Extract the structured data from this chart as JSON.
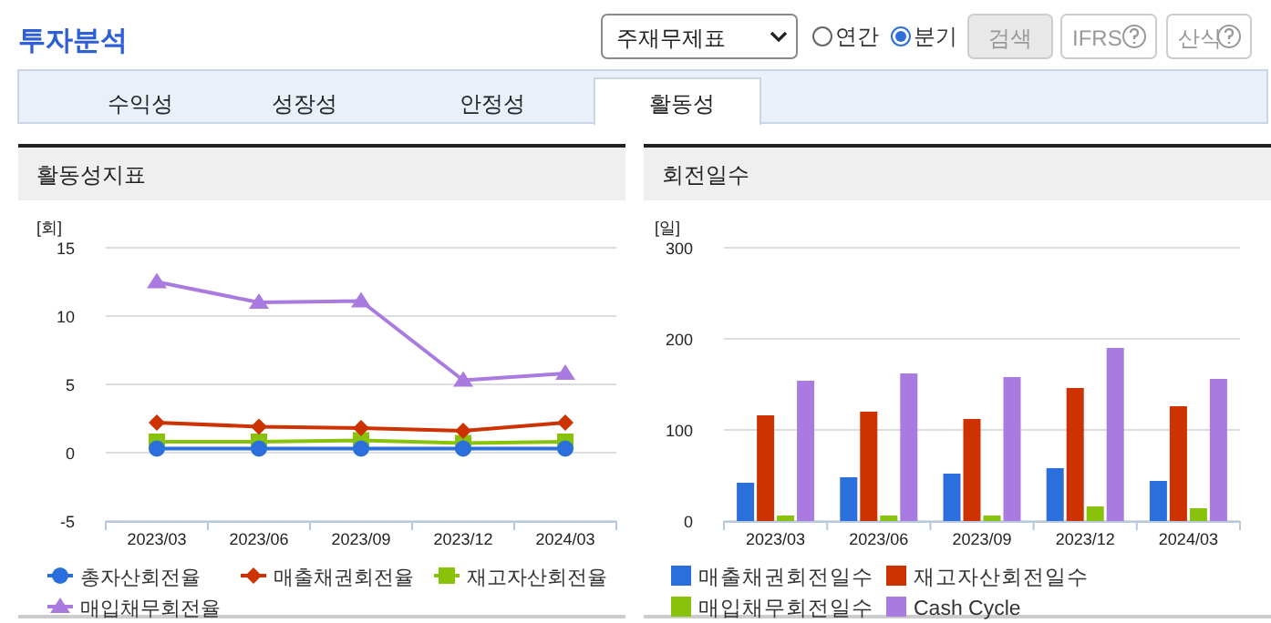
{
  "chart_data": [
    {
      "type": "other",
      "title": "투자분석",
      "annotations": [
        "주재무제표",
        "연간",
        "분기",
        "검색",
        "IFRS",
        "산식",
        "수익성",
        "성장성",
        "안정성",
        "활동성"
      ]
    },
    {
      "type": "line",
      "title": "활동성지표",
      "ylabel": "[회]",
      "categories": [
        "2023/03",
        "2023/06",
        "2023/09",
        "2023/12",
        "2024/03"
      ],
      "ylim": [
        -5,
        15
      ],
      "yticks": [
        -5,
        0,
        5,
        10,
        15
      ],
      "grid": "y",
      "legend": "bottom",
      "series": [
        {
          "name": "총자산회전율",
          "color": "#2a6fdb",
          "marker": "circle",
          "values": [
            0.3,
            0.3,
            0.3,
            0.3,
            0.3
          ]
        },
        {
          "name": "매출채권회전율",
          "color": "#cc3300",
          "marker": "diamond",
          "values": [
            2.2,
            1.9,
            1.8,
            1.6,
            2.2
          ]
        },
        {
          "name": "재고자산회전율",
          "color": "#88c20a",
          "marker": "square",
          "values": [
            0.8,
            0.8,
            0.9,
            0.7,
            0.8
          ]
        },
        {
          "name": "매입채무회전율",
          "color": "#a97be0",
          "marker": "triangle",
          "values": [
            12.5,
            11.0,
            11.1,
            5.3,
            5.8
          ]
        }
      ]
    },
    {
      "type": "bar",
      "title": "회전일수",
      "ylabel": "[일]",
      "categories": [
        "2023/03",
        "2023/06",
        "2023/09",
        "2023/12",
        "2024/03"
      ],
      "ylim": [
        0,
        300
      ],
      "yticks": [
        0,
        100,
        200,
        300
      ],
      "grid": "y",
      "legend": "bottom",
      "series": [
        {
          "name": "매출채권회전일수",
          "color": "#2a6fdb",
          "values": [
            42,
            48,
            52,
            58,
            44
          ]
        },
        {
          "name": "재고자산회전일수",
          "color": "#cc3300",
          "values": [
            116,
            120,
            112,
            146,
            126
          ]
        },
        {
          "name": "매입채무회전일수",
          "color": "#88c20a",
          "values": [
            6,
            6,
            6,
            16,
            14
          ]
        },
        {
          "name": "Cash Cycle",
          "color": "#a97be0",
          "values": [
            154,
            162,
            158,
            190,
            156
          ]
        }
      ]
    }
  ]
}
